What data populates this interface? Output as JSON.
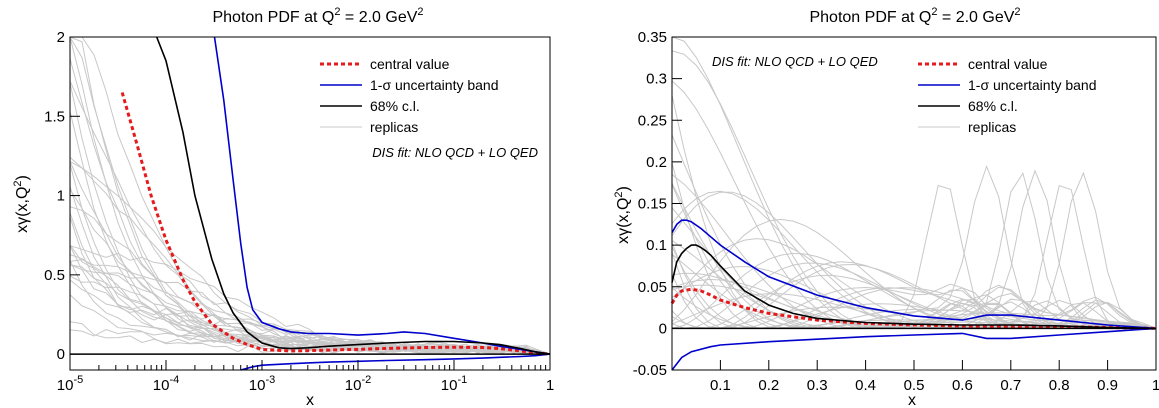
{
  "colors": {
    "central": "#e41a1c",
    "band": "#0000cc",
    "cl68": "#000000",
    "replicas": "#c8c8c8"
  },
  "chart_data": [
    {
      "type": "line",
      "title_main": "Photon PDF at Q",
      "title_sup1": "2",
      "title_mid": " = 2.0 GeV",
      "title_sup2": "2",
      "xlabel": "x",
      "ylabel_main": "xγ(x,Q",
      "ylabel_sup": "2",
      "ylabel_end": ")",
      "xscale": "log",
      "xlim": [
        1e-05,
        1
      ],
      "ylim": [
        -0.1,
        2.0
      ],
      "x_ticks": [
        {
          "base": "10",
          "exp": "-5",
          "value": 1e-05
        },
        {
          "base": "10",
          "exp": "-4",
          "value": 0.0001
        },
        {
          "base": "10",
          "exp": "-3",
          "value": 0.001
        },
        {
          "base": "10",
          "exp": "-2",
          "value": 0.01
        },
        {
          "base": "10",
          "exp": "-1",
          "value": 0.1
        },
        {
          "base": "1",
          "exp": "",
          "value": 1
        }
      ],
      "y_ticks": [
        {
          "label": "0",
          "value": 0
        },
        {
          "label": "0.5",
          "value": 0.5
        },
        {
          "label": "1",
          "value": 1
        },
        {
          "label": "1.5",
          "value": 1.5
        },
        {
          "label": "2",
          "value": 2
        }
      ],
      "legend": {
        "position": "top-right",
        "items": [
          {
            "label": "central value",
            "style": "central"
          },
          {
            "label": "1-σ uncertainty band",
            "style": "band"
          },
          {
            "label": "68% c.l.",
            "style": "cl68"
          },
          {
            "label": "replicas",
            "style": "replicas"
          }
        ]
      },
      "note": "DIS fit: NLO QCD + LO QED",
      "note_position": "below-legend",
      "series": [
        {
          "name": "central value",
          "style": "central",
          "x": [
            3.5e-05,
            5e-05,
            7e-05,
            0.0001,
            0.00015,
            0.0002,
            0.0003,
            0.0005,
            0.0007,
            0.001,
            0.002,
            0.003,
            0.005,
            0.01,
            0.02,
            0.05,
            0.1,
            0.2,
            0.3,
            0.5,
            0.7,
            1.0
          ],
          "y": [
            1.65,
            1.32,
            1.0,
            0.72,
            0.47,
            0.33,
            0.19,
            0.1,
            0.06,
            0.03,
            0.02,
            0.022,
            0.026,
            0.03,
            0.036,
            0.042,
            0.044,
            0.042,
            0.035,
            0.02,
            0.008,
            0.0
          ]
        },
        {
          "name": "1-σ uncertainty band upper",
          "style": "band",
          "x": [
            0.00032,
            0.0004,
            0.0005,
            0.0006,
            0.0007,
            0.0008,
            0.001,
            0.0015,
            0.002,
            0.003,
            0.005,
            0.01,
            0.02,
            0.03,
            0.05,
            0.1,
            0.2,
            0.3,
            0.5,
            0.7,
            1.0
          ],
          "y": [
            2.0,
            1.6,
            1.1,
            0.7,
            0.42,
            0.28,
            0.2,
            0.16,
            0.14,
            0.13,
            0.13,
            0.12,
            0.13,
            0.14,
            0.13,
            0.1,
            0.07,
            0.05,
            0.03,
            0.015,
            0.0
          ]
        },
        {
          "name": "1-σ uncertainty band lower",
          "style": "band",
          "x": [
            0.0006,
            0.0008,
            0.001,
            0.002,
            0.003,
            0.005,
            0.01,
            0.02,
            0.05,
            0.1,
            0.2,
            0.3,
            0.5,
            0.7,
            1.0
          ],
          "y": [
            -0.1,
            -0.08,
            -0.07,
            -0.06,
            -0.055,
            -0.05,
            -0.045,
            -0.04,
            -0.035,
            -0.03,
            -0.025,
            -0.02,
            -0.015,
            -0.01,
            0.0
          ]
        },
        {
          "name": "68% c.l.",
          "style": "cl68",
          "x": [
            8e-05,
            0.0001,
            0.00015,
            0.0002,
            0.0003,
            0.0004,
            0.0005,
            0.0007,
            0.001,
            0.0015,
            0.002,
            0.003,
            0.005,
            0.01,
            0.02,
            0.05,
            0.1,
            0.2,
            0.3,
            0.5,
            0.7,
            1.0
          ],
          "y": [
            2.0,
            1.85,
            1.4,
            1.0,
            0.6,
            0.38,
            0.26,
            0.14,
            0.07,
            0.04,
            0.035,
            0.04,
            0.05,
            0.06,
            0.07,
            0.08,
            0.08,
            0.07,
            0.06,
            0.035,
            0.015,
            0.0
          ]
        },
        {
          "name": "replicas",
          "style": "replicas",
          "count": 30
        }
      ]
    },
    {
      "type": "line",
      "title_main": "Photon PDF at Q",
      "title_sup1": "2",
      "title_mid": " = 2.0 GeV",
      "title_sup2": "2",
      "xlabel": "x",
      "ylabel_main": "xγ(x,Q",
      "ylabel_sup": "2",
      "ylabel_end": ")",
      "xscale": "linear",
      "xlim": [
        0,
        1
      ],
      "ylim": [
        -0.05,
        0.35
      ],
      "x_ticks": [
        {
          "label": "0.1",
          "value": 0.1
        },
        {
          "label": "0.2",
          "value": 0.2
        },
        {
          "label": "0.3",
          "value": 0.3
        },
        {
          "label": "0.4",
          "value": 0.4
        },
        {
          "label": "0.5",
          "value": 0.5
        },
        {
          "label": "0.6",
          "value": 0.6
        },
        {
          "label": "0.7",
          "value": 0.7
        },
        {
          "label": "0.8",
          "value": 0.8
        },
        {
          "label": "0.9",
          "value": 0.9
        },
        {
          "label": "1",
          "value": 1.0
        }
      ],
      "y_ticks": [
        {
          "label": "-0.05",
          "value": -0.05
        },
        {
          "label": "0",
          "value": 0
        },
        {
          "label": "0.05",
          "value": 0.05
        },
        {
          "label": "0.1",
          "value": 0.1
        },
        {
          "label": "0.15",
          "value": 0.15
        },
        {
          "label": "0.2",
          "value": 0.2
        },
        {
          "label": "0.25",
          "value": 0.25
        },
        {
          "label": "0.3",
          "value": 0.3
        },
        {
          "label": "0.35",
          "value": 0.35
        }
      ],
      "legend": {
        "position": "top-right",
        "items": [
          {
            "label": "central value",
            "style": "central"
          },
          {
            "label": "1-σ uncertainty band",
            "style": "band"
          },
          {
            "label": "68% c.l.",
            "style": "cl68"
          },
          {
            "label": "replicas",
            "style": "replicas"
          }
        ]
      },
      "note": "DIS fit: NLO QCD + LO QED",
      "note_position": "top-left",
      "series": [
        {
          "name": "central value",
          "style": "central",
          "x": [
            0.0,
            0.01,
            0.02,
            0.04,
            0.06,
            0.08,
            0.1,
            0.15,
            0.2,
            0.3,
            0.4,
            0.5,
            0.6,
            0.7,
            0.8,
            0.9,
            1.0
          ],
          "y": [
            0.03,
            0.04,
            0.045,
            0.047,
            0.045,
            0.04,
            0.034,
            0.025,
            0.018,
            0.01,
            0.006,
            0.004,
            0.003,
            0.0025,
            0.002,
            0.001,
            0.0
          ]
        },
        {
          "name": "1-σ uncertainty band upper",
          "style": "band",
          "x": [
            0.0,
            0.01,
            0.02,
            0.03,
            0.04,
            0.06,
            0.08,
            0.1,
            0.15,
            0.2,
            0.3,
            0.4,
            0.5,
            0.6,
            0.65,
            0.7,
            0.8,
            0.9,
            1.0
          ],
          "y": [
            0.115,
            0.125,
            0.13,
            0.13,
            0.128,
            0.12,
            0.11,
            0.1,
            0.08,
            0.062,
            0.04,
            0.025,
            0.015,
            0.01,
            0.016,
            0.016,
            0.01,
            0.004,
            0.0
          ]
        },
        {
          "name": "1-σ uncertainty band lower",
          "style": "band",
          "x": [
            0.0,
            0.02,
            0.04,
            0.08,
            0.1,
            0.2,
            0.3,
            0.4,
            0.5,
            0.6,
            0.65,
            0.7,
            0.8,
            0.9,
            1.0
          ],
          "y": [
            -0.05,
            -0.035,
            -0.028,
            -0.022,
            -0.02,
            -0.016,
            -0.013,
            -0.01,
            -0.008,
            -0.006,
            -0.012,
            -0.012,
            -0.008,
            -0.004,
            0.0
          ]
        },
        {
          "name": "68% c.l.",
          "style": "cl68",
          "x": [
            0.0,
            0.01,
            0.02,
            0.03,
            0.04,
            0.05,
            0.06,
            0.07,
            0.08,
            0.1,
            0.12,
            0.15,
            0.2,
            0.25,
            0.3,
            0.4,
            0.5,
            0.6,
            0.7,
            0.8,
            0.9,
            1.0
          ],
          "y": [
            0.055,
            0.08,
            0.09,
            0.096,
            0.1,
            0.1,
            0.097,
            0.093,
            0.088,
            0.075,
            0.063,
            0.045,
            0.028,
            0.018,
            0.012,
            0.007,
            0.005,
            0.004,
            0.004,
            0.003,
            0.001,
            0.0
          ]
        },
        {
          "name": "replicas",
          "style": "replicas",
          "count": 30
        }
      ]
    }
  ]
}
